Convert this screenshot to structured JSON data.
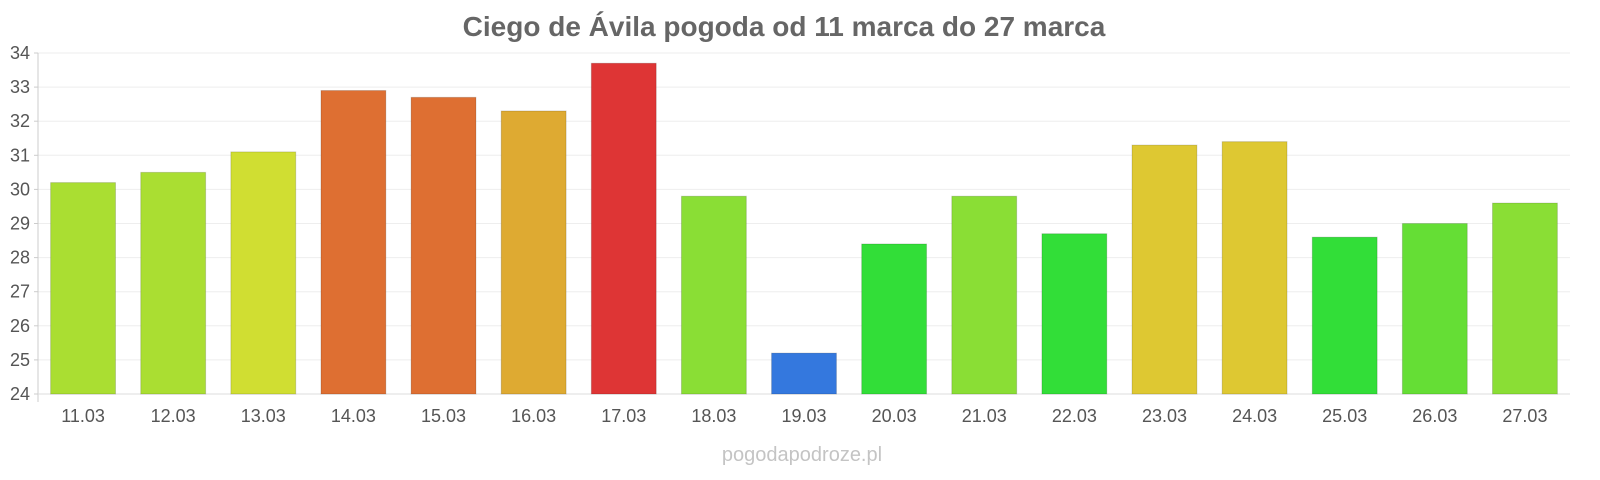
{
  "chart_data": {
    "type": "bar",
    "title": "Ciego de Ávila pogoda od 11 marca do 27 marca",
    "xlabel": "",
    "ylabel": "",
    "categories": [
      "11.03",
      "12.03",
      "13.03",
      "14.03",
      "15.03",
      "16.03",
      "17.03",
      "18.03",
      "19.03",
      "20.03",
      "21.03",
      "22.03",
      "23.03",
      "24.03",
      "25.03",
      "26.03",
      "27.03"
    ],
    "values": [
      30.2,
      30.5,
      31.1,
      32.9,
      32.7,
      32.3,
      33.7,
      29.8,
      25.2,
      28.4,
      29.8,
      28.7,
      31.3,
      31.4,
      28.6,
      29.0,
      29.6
    ],
    "colors": [
      "#aade32",
      "#aade32",
      "#d0de32",
      "#de6f32",
      "#de6f32",
      "#deaa32",
      "#de3535",
      "#8ade35",
      "#3478de",
      "#32de38",
      "#8ade35",
      "#32de38",
      "#dec832",
      "#dec832",
      "#32de38",
      "#65de35",
      "#8ade35"
    ],
    "ylim": [
      24,
      34
    ],
    "yticks": [
      24,
      25,
      26,
      27,
      28,
      29,
      30,
      31,
      32,
      33,
      34
    ],
    "grid": true,
    "legend": "none"
  },
  "footer": {
    "watermark": "pogodapodroze.pl"
  }
}
